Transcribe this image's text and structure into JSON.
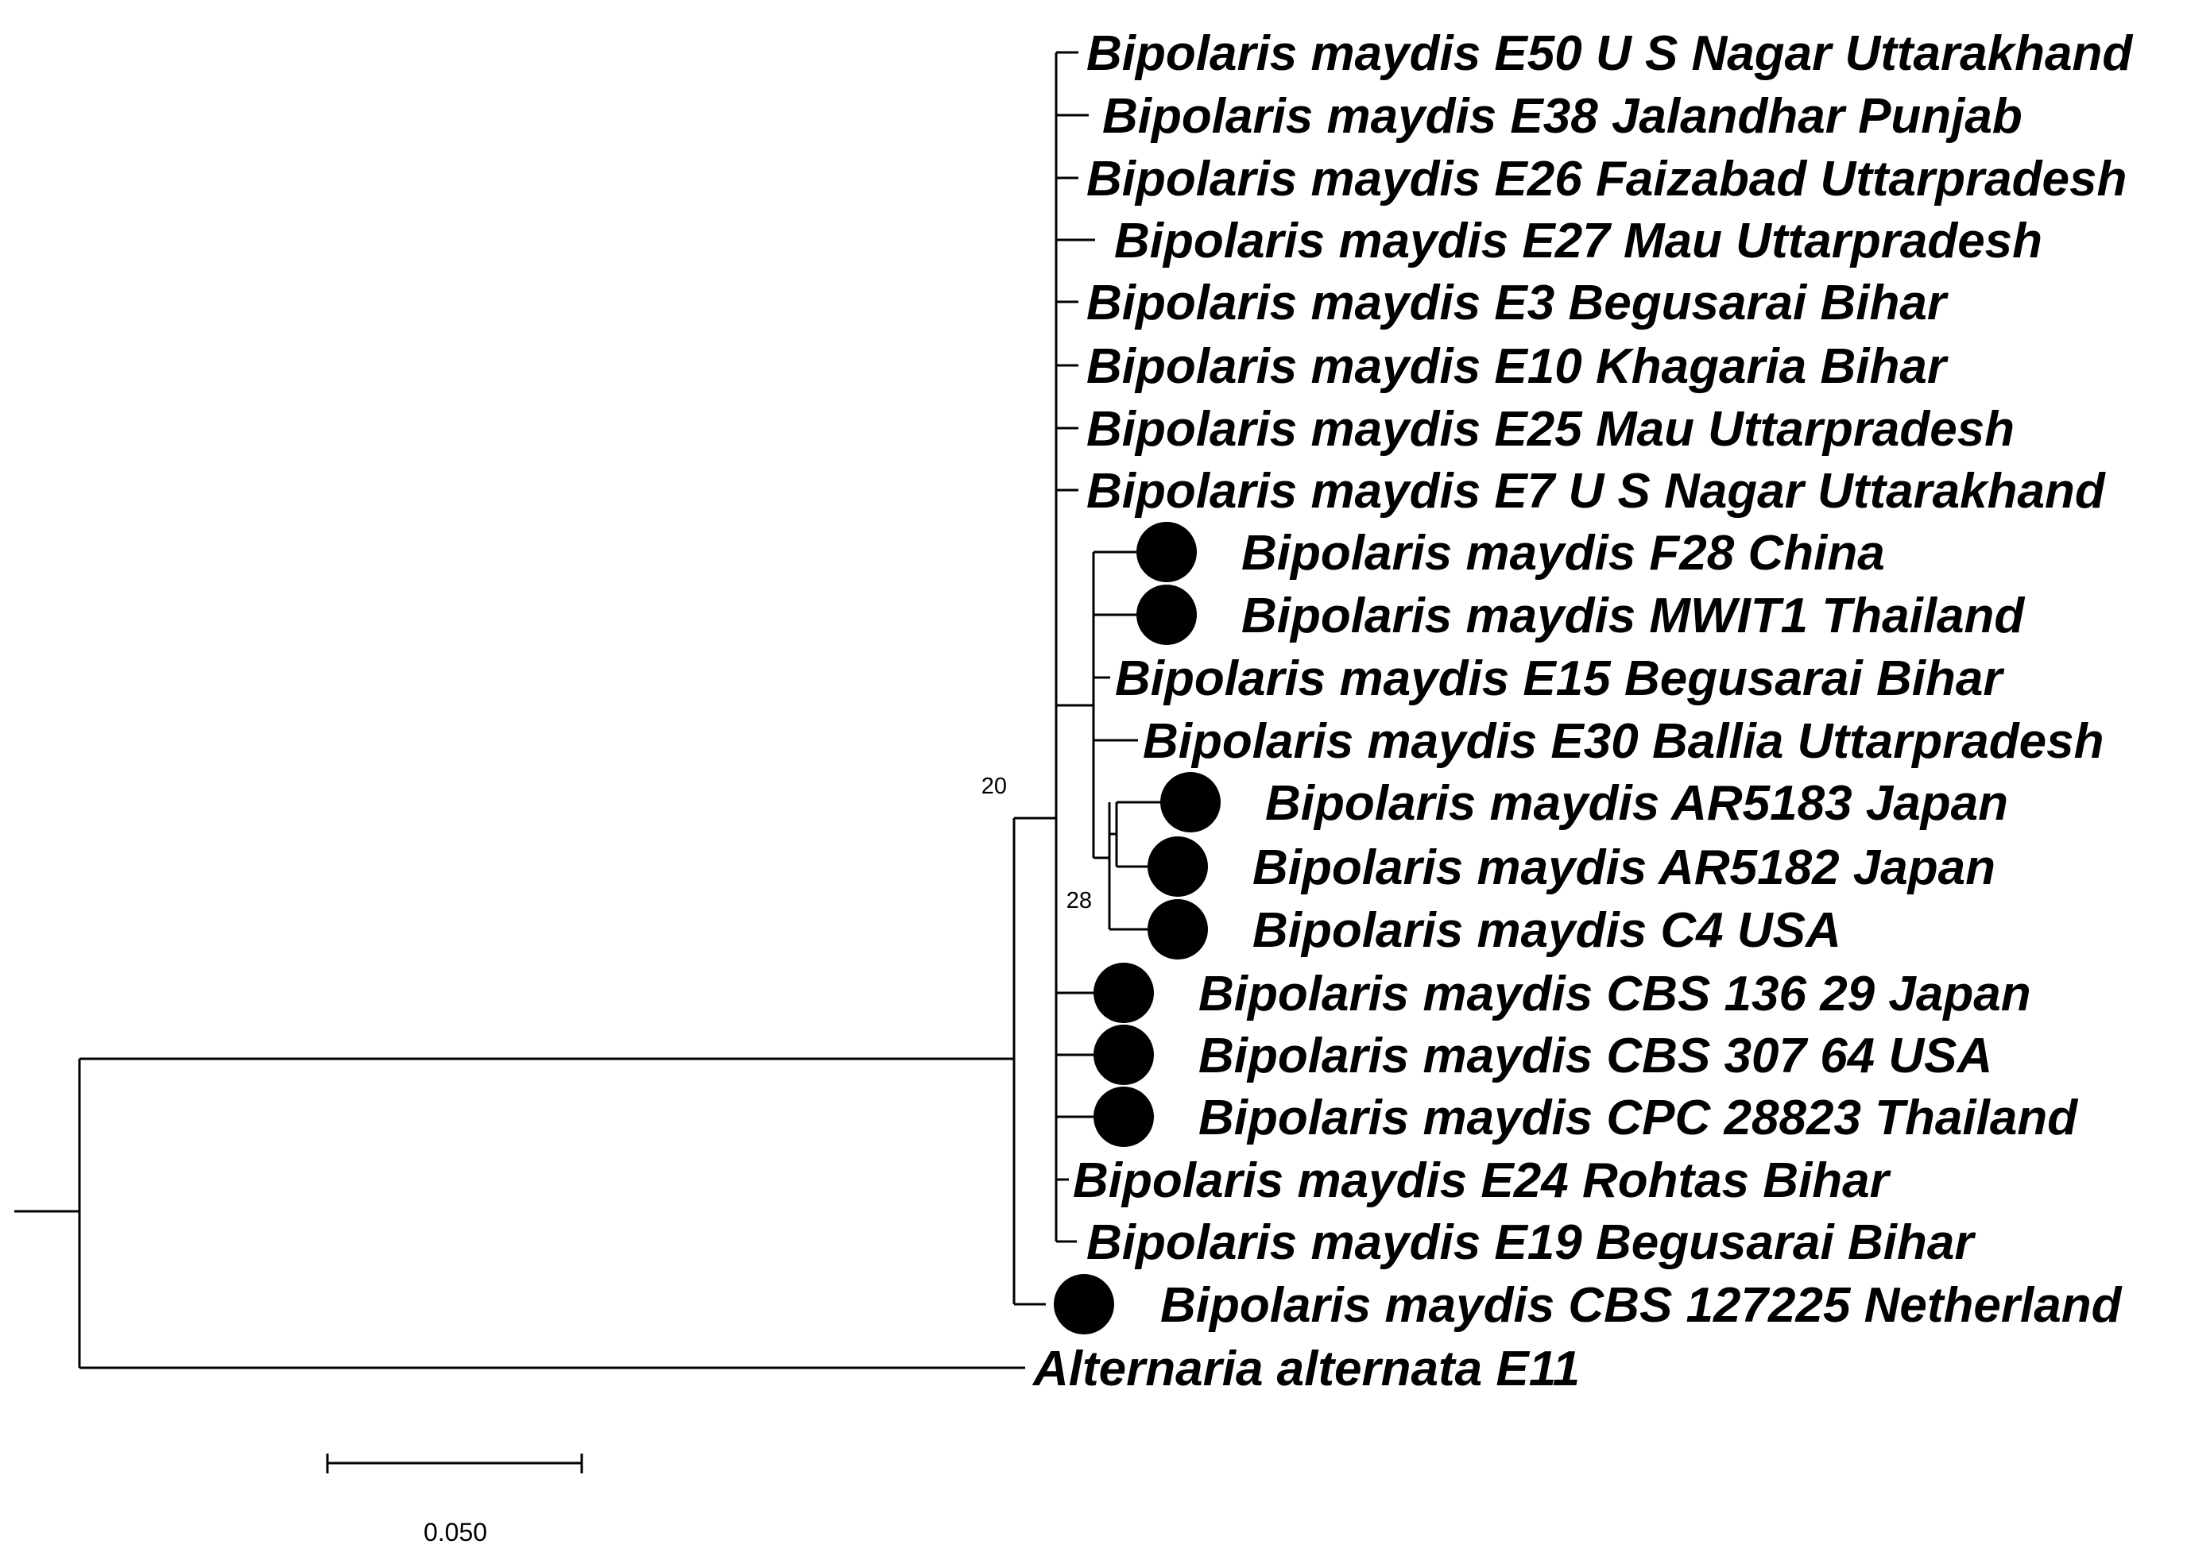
{
  "tree": {
    "taxa": [
      {
        "label": "Bipolaris maydis E50 U S Nagar Uttarakhand",
        "marker": false
      },
      {
        "label": "Bipolaris maydis E38 Jalandhar Punjab",
        "marker": false
      },
      {
        "label": "Bipolaris maydis E26 Faizabad Uttarpradesh",
        "marker": false
      },
      {
        "label": "Bipolaris maydis E27 Mau Uttarpradesh",
        "marker": false
      },
      {
        "label": "Bipolaris maydis E3 Begusarai Bihar",
        "marker": false
      },
      {
        "label": "Bipolaris maydis E10 Khagaria Bihar",
        "marker": false
      },
      {
        "label": "Bipolaris maydis E25 Mau Uttarpradesh",
        "marker": false
      },
      {
        "label": "Bipolaris maydis E7 U S Nagar Uttarakhand",
        "marker": false
      },
      {
        "label": "Bipolaris maydis F28 China",
        "marker": true
      },
      {
        "label": "Bipolaris maydis MWIT1 Thailand",
        "marker": true
      },
      {
        "label": "Bipolaris maydis E15 Begusarai Bihar",
        "marker": false
      },
      {
        "label": "Bipolaris maydis E30 Ballia Uttarpradesh",
        "marker": false
      },
      {
        "label": "Bipolaris maydis AR5183 Japan",
        "marker": true
      },
      {
        "label": "Bipolaris maydis AR5182 Japan",
        "marker": true
      },
      {
        "label": "Bipolaris maydis C4 USA",
        "marker": true
      },
      {
        "label": "Bipolaris maydis CBS 136 29 Japan",
        "marker": true
      },
      {
        "label": "Bipolaris maydis CBS 307 64 USA",
        "marker": true
      },
      {
        "label": "Bipolaris maydis CPC 28823 Thailand",
        "marker": true
      },
      {
        "label": "Bipolaris maydis E24 Rohtas Bihar",
        "marker": false
      },
      {
        "label": "Bipolaris maydis E19 Begusarai Bihar",
        "marker": false
      },
      {
        "label": "Bipolaris maydis CBS 127225 Netherland",
        "marker": true
      },
      {
        "label": "Alternaria alternata E11",
        "marker": false
      }
    ],
    "bootstrap": [
      "20",
      "28"
    ],
    "scale_bar": {
      "label": "0.050"
    }
  }
}
